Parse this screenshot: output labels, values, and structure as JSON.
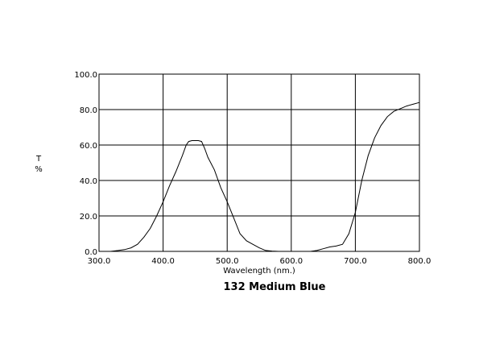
{
  "chart_data": {
    "type": "line",
    "title": "132 Medium Blue",
    "xlabel": "Wavelength (nm.)",
    "ylabel": [
      "T",
      "%"
    ],
    "xlim": [
      300,
      800
    ],
    "ylim": [
      0,
      100
    ],
    "x_ticks": [
      300,
      400,
      500,
      600,
      700,
      800
    ],
    "y_ticks": [
      0,
      20,
      40,
      60,
      80,
      100
    ],
    "x_tick_labels": [
      "300.0",
      "400.0",
      "500.0",
      "600.0",
      "700.0",
      "800.0"
    ],
    "y_tick_labels": [
      "0.0",
      "20.0",
      "40.0",
      "60.0",
      "80.0",
      "100.0"
    ],
    "grid": true,
    "line_color": "#000000",
    "series": [
      {
        "x": [
          318,
          330,
          340,
          350,
          360,
          370,
          380,
          390,
          400,
          410,
          420,
          430,
          436,
          440,
          445,
          450,
          455,
          460,
          465,
          470,
          480,
          490,
          500,
          510,
          520,
          530,
          540,
          550,
          560,
          570,
          580,
          590,
          600,
          610,
          620,
          630,
          640,
          650,
          660,
          670,
          680,
          690,
          700,
          710,
          720,
          730,
          740,
          750,
          760,
          770,
          780,
          790,
          800
        ],
        "y": [
          0,
          0.5,
          1,
          2,
          4,
          8,
          13,
          20,
          28,
          37,
          45,
          54,
          60,
          62,
          62.5,
          62.5,
          62.5,
          62,
          58,
          53,
          46,
          36,
          28,
          19,
          10,
          6,
          4,
          2,
          0.5,
          0.2,
          0,
          0,
          0,
          0,
          0,
          0,
          0.5,
          1.5,
          2.5,
          3,
          4,
          10,
          22,
          40,
          54,
          64,
          71,
          76,
          79,
          80.5,
          82,
          83,
          84
        ]
      }
    ]
  }
}
